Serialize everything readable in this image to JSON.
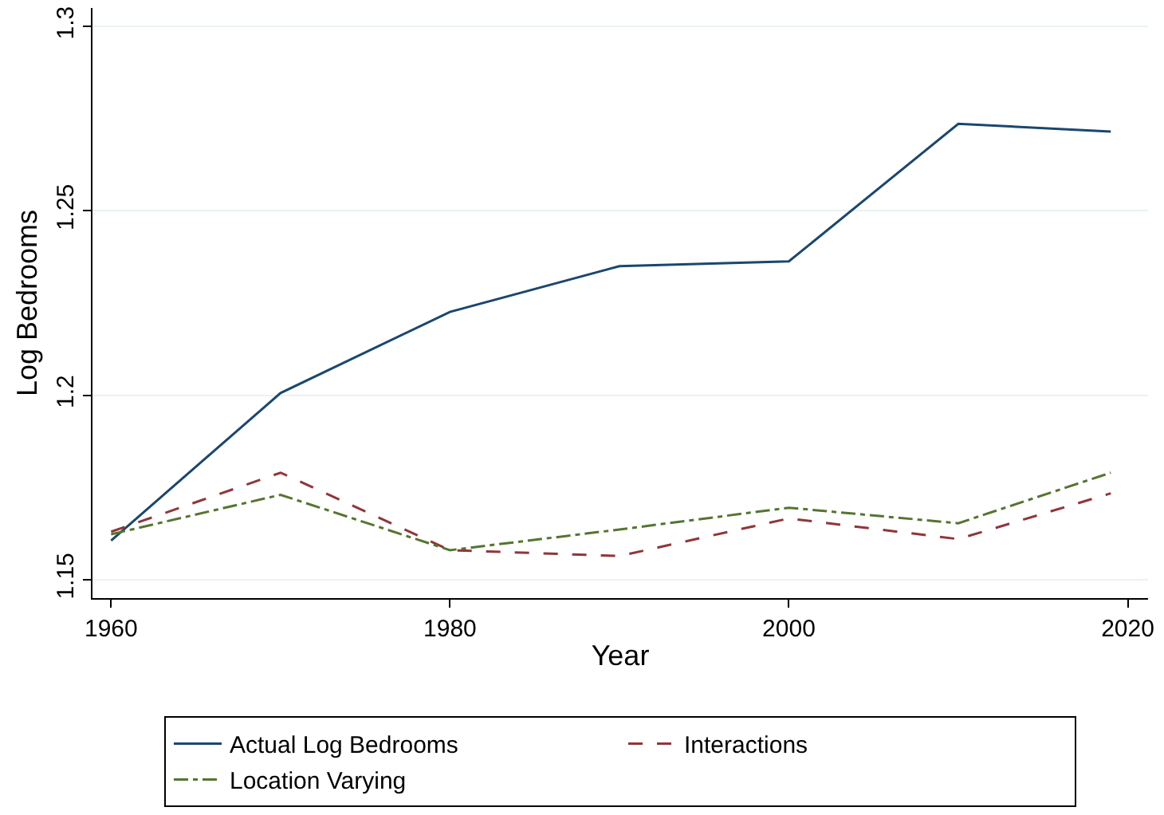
{
  "chart_data": {
    "type": "line",
    "xlabel": "Year",
    "ylabel": "Log Bedrooms",
    "x": [
      1960,
      1970,
      1980,
      1990,
      2000,
      2010,
      2019
    ],
    "series": [
      {
        "name": "Actual Log Bedrooms",
        "color": "#1a476f",
        "line_style": "solid",
        "values": [
          1.1606,
          1.2006,
          1.2226,
          1.235,
          1.2363,
          1.2736,
          1.2715
        ]
      },
      {
        "name": "Interactions",
        "color": "#90353b",
        "line_style": "dashed",
        "values": [
          1.163,
          1.179,
          1.158,
          1.1564,
          1.1666,
          1.161,
          1.1734
        ]
      },
      {
        "name": "Location Varying",
        "color": "#55752f",
        "line_style": "dashdot",
        "values": [
          1.1623,
          1.173,
          1.158,
          1.1636,
          1.1695,
          1.1653,
          1.179
        ]
      }
    ],
    "xlim": [
      1958.9,
      2021.2
    ],
    "xticks": [
      1960,
      1980,
      2000,
      2020
    ],
    "ylim": [
      1.145,
      1.305
    ],
    "yticks": [
      1.15,
      1.2,
      1.25,
      1.3
    ],
    "grid": "y",
    "legend": "bottom",
    "marker": "none"
  }
}
